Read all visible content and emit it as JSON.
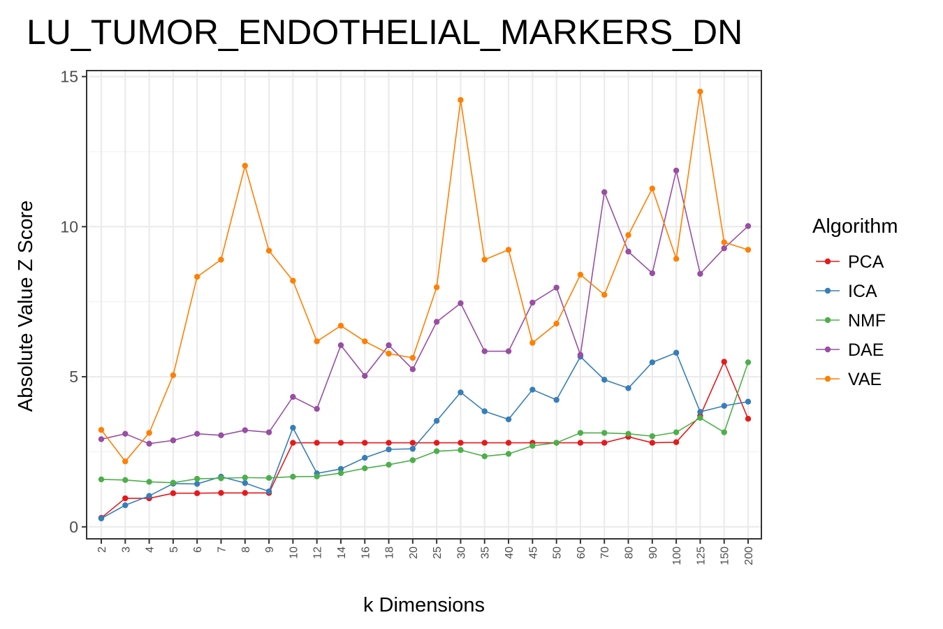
{
  "chart_data": {
    "type": "line",
    "title": "LU_TUMOR_ENDOTHELIAL_MARKERS_DN",
    "xlabel": "k Dimensions",
    "ylabel": "Absolute Value Z Score",
    "categories": [
      "2",
      "3",
      "4",
      "5",
      "6",
      "7",
      "8",
      "9",
      "10",
      "12",
      "14",
      "16",
      "18",
      "20",
      "25",
      "30",
      "35",
      "40",
      "45",
      "50",
      "60",
      "70",
      "80",
      "90",
      "100",
      "125",
      "150",
      "200"
    ],
    "ylim": [
      -0.4,
      15.2
    ],
    "yticks": [
      0,
      5,
      10,
      15
    ],
    "grid": true,
    "legend": {
      "title": "Algorithm",
      "position": "right"
    },
    "series": [
      {
        "name": "PCA",
        "color": "#e41a1c",
        "values": [
          0.3,
          0.95,
          0.95,
          1.12,
          1.12,
          1.13,
          1.13,
          1.13,
          2.8,
          2.8,
          2.8,
          2.8,
          2.8,
          2.8,
          2.8,
          2.8,
          2.8,
          2.8,
          2.8,
          2.8,
          2.8,
          2.8,
          3.0,
          2.8,
          2.82,
          3.7,
          5.5,
          3.6
        ]
      },
      {
        "name": "ICA",
        "color": "#377eb8",
        "values": [
          0.28,
          0.72,
          1.03,
          1.44,
          1.43,
          1.67,
          1.46,
          1.18,
          3.3,
          1.78,
          1.93,
          2.3,
          2.58,
          2.6,
          3.53,
          4.48,
          3.85,
          3.58,
          4.57,
          4.23,
          5.67,
          4.9,
          4.62,
          5.48,
          5.8,
          3.83,
          4.03,
          4.17
        ]
      },
      {
        "name": "NMF",
        "color": "#4daf4a",
        "values": [
          1.58,
          1.56,
          1.5,
          1.47,
          1.6,
          1.62,
          1.64,
          1.63,
          1.67,
          1.68,
          1.79,
          1.95,
          2.07,
          2.22,
          2.52,
          2.56,
          2.35,
          2.43,
          2.7,
          2.8,
          3.13,
          3.13,
          3.1,
          3.02,
          3.15,
          3.63,
          3.15,
          5.48
        ]
      },
      {
        "name": "DAE",
        "color": "#984ea3",
        "values": [
          2.92,
          3.1,
          2.77,
          2.88,
          3.1,
          3.05,
          3.22,
          3.15,
          4.33,
          3.93,
          6.05,
          5.03,
          6.05,
          5.25,
          6.83,
          7.45,
          5.85,
          5.85,
          7.47,
          7.97,
          5.73,
          11.15,
          9.17,
          8.45,
          11.87,
          8.43,
          9.28,
          10.02
        ]
      },
      {
        "name": "VAE",
        "color": "#ff7f00",
        "values": [
          3.23,
          2.18,
          3.13,
          5.05,
          8.33,
          8.9,
          12.03,
          9.2,
          8.2,
          6.18,
          6.7,
          6.18,
          5.77,
          5.63,
          7.98,
          14.22,
          8.9,
          9.23,
          6.13,
          6.77,
          8.4,
          7.73,
          9.72,
          11.27,
          8.93,
          14.5,
          9.48,
          9.23
        ]
      }
    ]
  }
}
